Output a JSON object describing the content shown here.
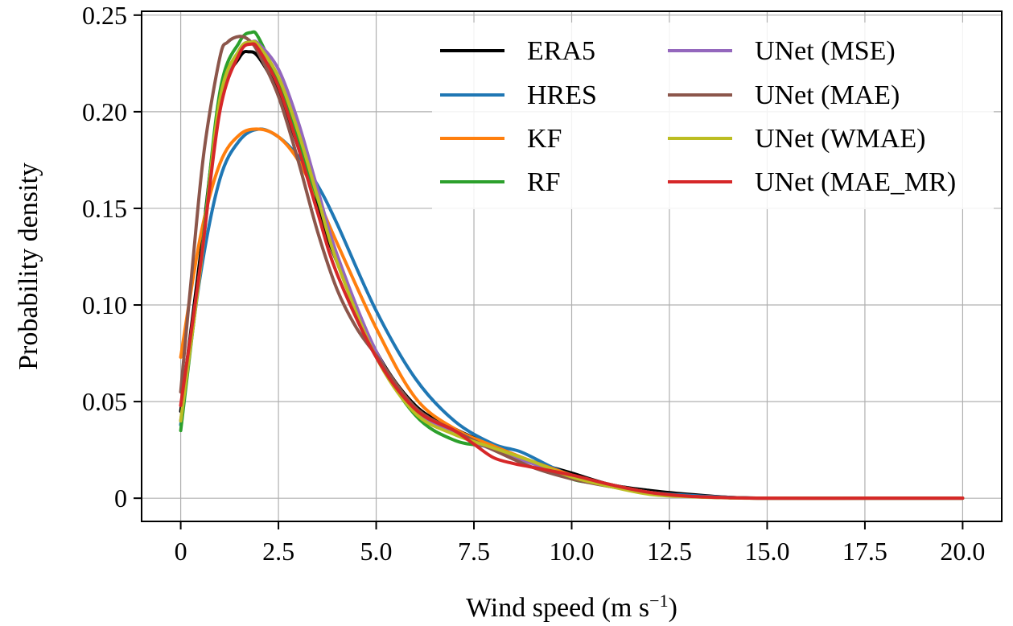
{
  "chart_data": {
    "type": "line",
    "title": "",
    "xlabel": "Wind speed (m s",
    "xlabel_sup": "−1",
    "xlabel_end": ")",
    "ylabel": "Probability density",
    "xlim": [
      -1.0,
      21.0
    ],
    "ylim": [
      -0.012,
      0.252
    ],
    "xticks": [
      0,
      2.5,
      5.0,
      7.5,
      10.0,
      12.5,
      15.0,
      17.5,
      20.0
    ],
    "xtick_labels": [
      "0",
      "2.5",
      "5.0",
      "7.5",
      "10.0",
      "12.5",
      "15.0",
      "17.5",
      "20.0"
    ],
    "yticks": [
      0,
      0.05,
      0.1,
      0.15,
      0.2,
      0.25
    ],
    "ytick_labels": [
      "0",
      "0.05",
      "0.10",
      "0.15",
      "0.20",
      "0.25"
    ],
    "grid": true,
    "legend_position": "top-right",
    "series": [
      {
        "name": "ERA5",
        "color": "#000000",
        "x": [
          0,
          0.5,
          1.0,
          1.5,
          1.75,
          2.0,
          2.5,
          3.0,
          3.5,
          4.0,
          5.0,
          6.0,
          7.0,
          8.0,
          9.0,
          10.0,
          11.0,
          12.0,
          13.0,
          14.0,
          15.0,
          17.5,
          20.0
        ],
        "y": [
          0.045,
          0.125,
          0.205,
          0.228,
          0.231,
          0.228,
          0.21,
          0.182,
          0.15,
          0.122,
          0.076,
          0.048,
          0.036,
          0.027,
          0.019,
          0.013,
          0.007,
          0.004,
          0.002,
          0.0005,
          0.0,
          0.0,
          0.0
        ]
      },
      {
        "name": "HRES",
        "color": "#1f77b4",
        "x": [
          0,
          0.5,
          1.0,
          1.5,
          2.0,
          2.5,
          3.0,
          3.5,
          4.0,
          5.0,
          6.0,
          7.0,
          8.0,
          8.7,
          9.5,
          10.0,
          11.0,
          12.0,
          13.0,
          14.0,
          15.0,
          17.5,
          20.0
        ],
        "y": [
          0.038,
          0.115,
          0.165,
          0.185,
          0.191,
          0.187,
          0.177,
          0.162,
          0.142,
          0.097,
          0.062,
          0.04,
          0.028,
          0.024,
          0.016,
          0.012,
          0.007,
          0.003,
          0.0015,
          0.0005,
          0.0,
          0.0,
          0.0
        ]
      },
      {
        "name": "KF",
        "color": "#ff7f0e",
        "x": [
          0,
          0.5,
          1.0,
          1.5,
          2.0,
          2.5,
          3.0,
          3.5,
          4.0,
          5.0,
          6.0,
          7.0,
          8.0,
          9.0,
          10.0,
          11.0,
          12.0,
          13.0,
          14.0,
          15.0,
          17.5,
          20.0
        ],
        "y": [
          0.073,
          0.135,
          0.173,
          0.188,
          0.191,
          0.187,
          0.175,
          0.155,
          0.132,
          0.088,
          0.052,
          0.036,
          0.027,
          0.019,
          0.012,
          0.007,
          0.003,
          0.001,
          0.0003,
          0.0,
          0.0,
          0.0
        ]
      },
      {
        "name": "RF",
        "color": "#2ca02c",
        "x": [
          0,
          0.5,
          1.0,
          1.5,
          1.8,
          2.0,
          2.5,
          3.0,
          3.5,
          4.0,
          5.0,
          6.0,
          7.0,
          8.0,
          9.0,
          10.0,
          10.5,
          11.0,
          12.0,
          13.0,
          14.0,
          15.0,
          17.5,
          20.0
        ],
        "y": [
          0.035,
          0.12,
          0.21,
          0.236,
          0.241,
          0.238,
          0.215,
          0.185,
          0.155,
          0.125,
          0.075,
          0.043,
          0.03,
          0.026,
          0.018,
          0.01,
          0.008,
          0.006,
          0.003,
          0.001,
          0.0003,
          0.0,
          0.0,
          0.0
        ]
      },
      {
        "name": "UNet (MSE)",
        "color": "#9467bd",
        "x": [
          0,
          0.5,
          1.0,
          1.5,
          1.8,
          2.0,
          2.5,
          3.0,
          3.5,
          4.0,
          5.0,
          6.0,
          7.0,
          8.0,
          9.0,
          10.0,
          11.0,
          12.0,
          13.0,
          14.0,
          15.0,
          17.5,
          20.0
        ],
        "y": [
          0.04,
          0.118,
          0.205,
          0.232,
          0.236,
          0.235,
          0.222,
          0.195,
          0.16,
          0.126,
          0.076,
          0.046,
          0.034,
          0.025,
          0.018,
          0.011,
          0.006,
          0.003,
          0.001,
          0.0003,
          0.0,
          0.0,
          0.0
        ]
      },
      {
        "name": "UNet (MAE)",
        "color": "#8c564b",
        "x": [
          0,
          0.3,
          0.6,
          1.0,
          1.2,
          1.5,
          1.75,
          2.0,
          2.5,
          3.0,
          3.5,
          4.0,
          4.5,
          5.0,
          6.0,
          7.0,
          8.0,
          9.0,
          10.0,
          11.0,
          12.0,
          13.0,
          14.0,
          15.0,
          17.5,
          20.0
        ],
        "y": [
          0.055,
          0.12,
          0.18,
          0.228,
          0.236,
          0.239,
          0.237,
          0.23,
          0.208,
          0.175,
          0.138,
          0.108,
          0.088,
          0.074,
          0.047,
          0.035,
          0.025,
          0.016,
          0.01,
          0.006,
          0.003,
          0.001,
          0.0003,
          0.0,
          0.0,
          0.0
        ]
      },
      {
        "name": "UNet (WMAE)",
        "color": "#bcbd22",
        "x": [
          0,
          0.5,
          1.0,
          1.5,
          1.8,
          2.0,
          2.5,
          3.0,
          3.5,
          4.0,
          5.0,
          6.0,
          7.0,
          8.0,
          9.0,
          10.0,
          11.0,
          12.0,
          13.0,
          14.0,
          15.0,
          17.5,
          20.0
        ],
        "y": [
          0.04,
          0.118,
          0.206,
          0.232,
          0.236,
          0.234,
          0.218,
          0.19,
          0.156,
          0.122,
          0.073,
          0.044,
          0.033,
          0.026,
          0.019,
          0.011,
          0.006,
          0.002,
          0.0008,
          0.0002,
          0.0,
          0.0,
          0.0
        ]
      },
      {
        "name": "UNet (MAE_MR)",
        "color": "#d62728",
        "x": [
          0,
          0.5,
          1.0,
          1.5,
          1.8,
          2.0,
          2.5,
          3.0,
          3.5,
          4.0,
          5.0,
          6.0,
          7.0,
          7.5,
          8.0,
          8.5,
          9.0,
          10.0,
          11.0,
          12.0,
          13.0,
          14.0,
          15.0,
          17.5,
          20.0
        ],
        "y": [
          0.048,
          0.12,
          0.2,
          0.23,
          0.235,
          0.232,
          0.213,
          0.182,
          0.148,
          0.116,
          0.073,
          0.046,
          0.035,
          0.028,
          0.021,
          0.018,
          0.016,
          0.012,
          0.007,
          0.003,
          0.001,
          0.0003,
          0.0,
          0.0,
          0.0
        ]
      }
    ]
  }
}
